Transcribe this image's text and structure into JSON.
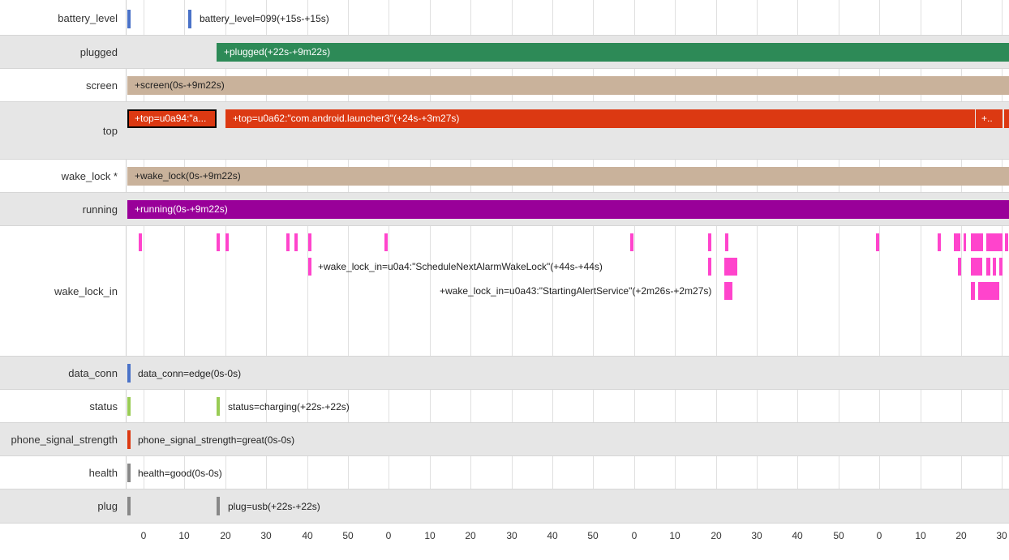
{
  "colors": {
    "battery": "#4a72c8",
    "plugged": "#2d8a57",
    "screen": "#c9b29b",
    "top": "#dc3912",
    "wake_lock": "#c9b29b",
    "running": "#990099",
    "wake_lock_in": "#ff44cc",
    "data_conn": "#4a72c8",
    "status": "#99cc55",
    "signal": "#dc3912",
    "health": "#888888",
    "plug": "#888888"
  },
  "rows": {
    "battery_level": {
      "label": "battery_level",
      "tick_label": "battery_level=099(+15s-+15s)"
    },
    "plugged": {
      "label": "plugged",
      "bar_label": "+plugged(+22s-+9m22s)"
    },
    "screen": {
      "label": "screen",
      "bar_label": "+screen(0s-+9m22s)"
    },
    "top": {
      "label": "top",
      "bar1_label": "+top=u0a94:\"a...",
      "bar2_label": "+top=u0a62:\"com.android.launcher3\"(+24s-+3m27s)",
      "bar3_label": "+.."
    },
    "wake_lock": {
      "label": "wake_lock *",
      "bar_label": "+wake_lock(0s-+9m22s)"
    },
    "running": {
      "label": "running",
      "bar_label": "+running(0s-+9m22s)"
    },
    "wake_lock_in": {
      "label": "wake_lock_in",
      "annotation1": "+wake_lock_in=u0a4:\"ScheduleNextAlarmWakeLock\"(+44s-+44s)",
      "annotation2": "+wake_lock_in=u0a43:\"StartingAlertService\"(+2m26s-+2m27s)"
    },
    "data_conn": {
      "label": "data_conn",
      "tick_label": "data_conn=edge(0s-0s)"
    },
    "status": {
      "label": "status",
      "tick_label": "status=charging(+22s-+22s)"
    },
    "phone_signal_strength": {
      "label": "phone_signal_strength",
      "tick_label": "phone_signal_strength=great(0s-0s)"
    },
    "health": {
      "label": "health",
      "tick_label": "health=good(0s-0s)"
    },
    "plug": {
      "label": "plug",
      "tick_label": "plug=usb(+22s-+22s)"
    }
  },
  "axis": {
    "ticks": [
      "0",
      "10",
      "20",
      "30",
      "40",
      "50",
      "0",
      "10",
      "20",
      "30",
      "40",
      "50",
      "0",
      "10",
      "20",
      "30",
      "40",
      "50",
      "0",
      "10",
      "20",
      "30"
    ]
  }
}
